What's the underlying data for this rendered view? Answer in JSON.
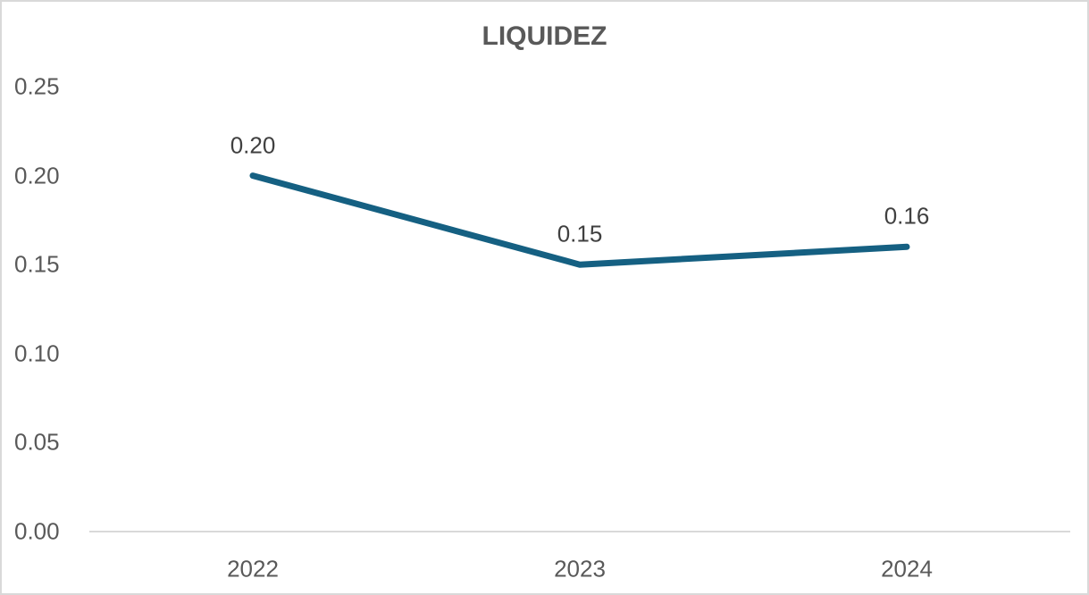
{
  "chart_data": {
    "type": "line",
    "title": "LIQUIDEZ",
    "categories": [
      "2022",
      "2023",
      "2024"
    ],
    "values": [
      0.2,
      0.15,
      0.16
    ],
    "data_labels": [
      "0.20",
      "0.15",
      "0.16"
    ],
    "y_ticks": [
      "0.00",
      "0.05",
      "0.10",
      "0.15",
      "0.20",
      "0.25"
    ],
    "y_tick_values": [
      0,
      0.05,
      0.1,
      0.15,
      0.2,
      0.25
    ],
    "ylim": [
      0,
      0.25
    ],
    "xlabel": "",
    "ylabel": "",
    "grid": false,
    "legend": "none",
    "colors": {
      "line": "#156082",
      "title": "#595959",
      "axis_label": "#595959",
      "data_label": "#404040",
      "axis_line": "#d9d9d9",
      "frame_border": "#d9d9d9",
      "background": "#ffffff"
    }
  }
}
